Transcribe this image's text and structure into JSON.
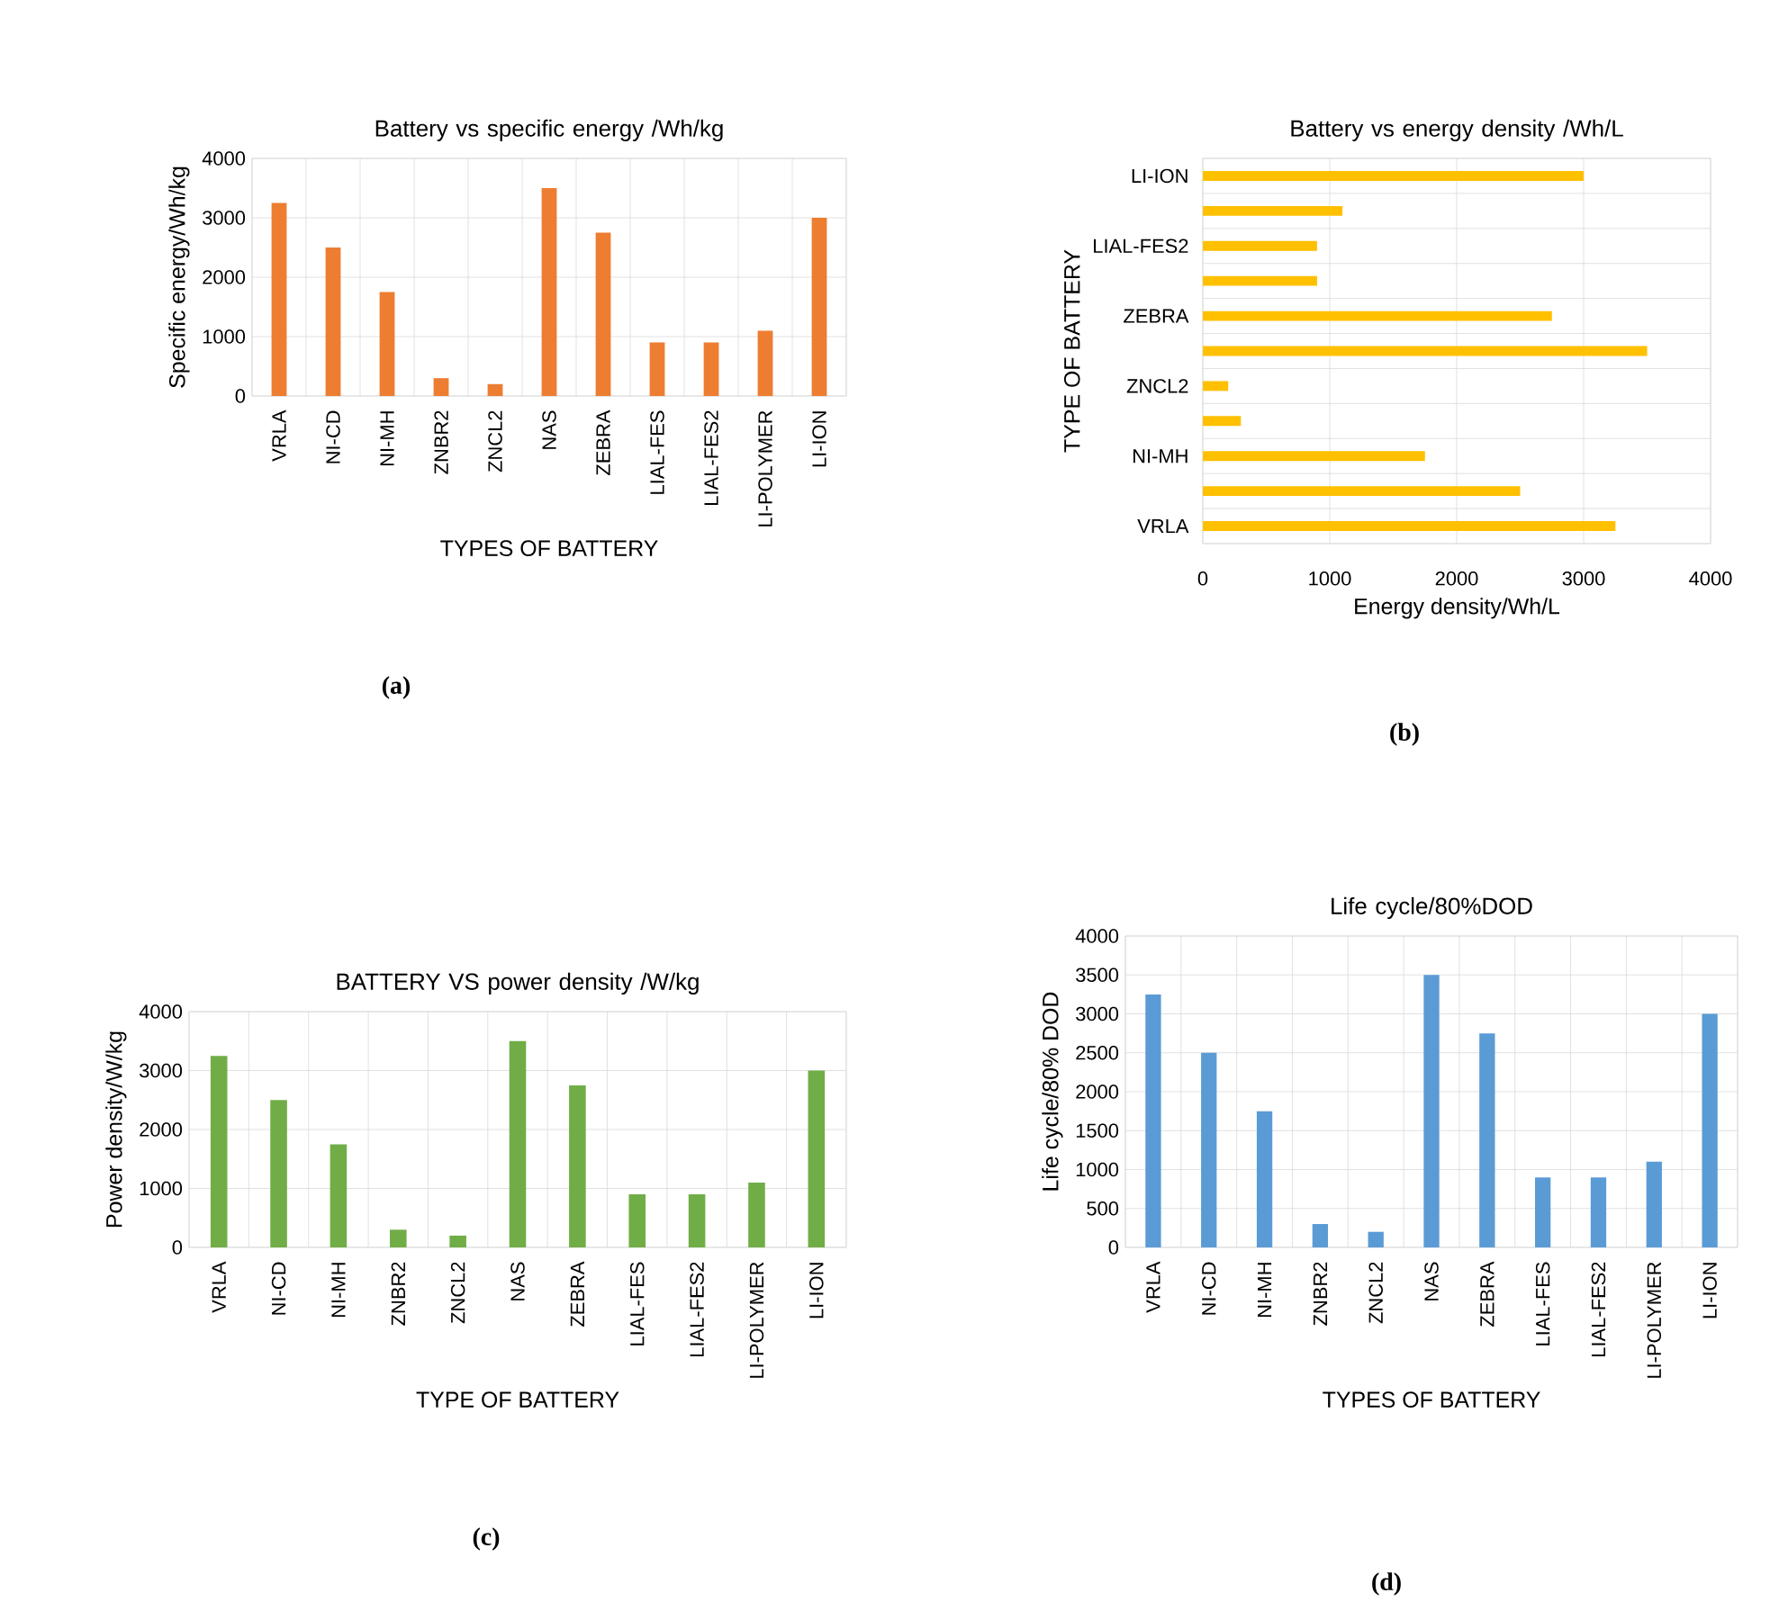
{
  "chart_data": [
    {
      "type": "bar",
      "title": "Battery vs specific energy /Wh/kg",
      "xlabel": "TYPES OF BATTERY",
      "ylabel": "Specific energy/Wh/kg",
      "categories": [
        "VRLA",
        "NI-CD",
        "NI-MH",
        "ZNBR2",
        "ZNCL2",
        "NAS",
        "ZEBRA",
        "LIAL-FES",
        "LIAL-FES2",
        "LI-POLYMER",
        "LI-ION"
      ],
      "values": [
        3250,
        2500,
        1750,
        300,
        200,
        3500,
        2750,
        900,
        900,
        1100,
        3000
      ],
      "color": "#ed7d31",
      "ylim": [
        0,
        4000
      ],
      "yticks": [
        0,
        1000,
        2000,
        3000,
        4000
      ],
      "grid": true,
      "annotations": [
        "(a)"
      ]
    },
    {
      "type": "bar",
      "orientation": "horizontal",
      "title": "Battery vs energy density /Wh/L",
      "xlabel": "Energy density/Wh/L",
      "ylabel": "TYPE OF BATTERY",
      "categories": [
        "LI-ION",
        null,
        "LIAL-FES2",
        null,
        "ZEBRA",
        null,
        "ZNCL2",
        null,
        "NI-MH",
        null,
        "VRLA"
      ],
      "values": [
        3000,
        1100,
        900,
        900,
        2750,
        3500,
        200,
        300,
        1750,
        2500,
        3250
      ],
      "color": "#ffc000",
      "xlim": [
        0,
        4000
      ],
      "xticks": [
        0,
        1000,
        2000,
        3000,
        4000
      ],
      "grid": true,
      "annotations": [
        "(b)"
      ]
    },
    {
      "type": "bar",
      "title": "BATTERY VS power density /W/kg",
      "xlabel": "TYPE OF BATTERY",
      "ylabel": "Power density/W/kg",
      "categories": [
        "VRLA",
        "NI-CD",
        "NI-MH",
        "ZNBR2",
        "ZNCL2",
        "NAS",
        "ZEBRA",
        "LIAL-FES",
        "LIAL-FES2",
        "LI-POLYMER",
        "LI-ION"
      ],
      "values": [
        3250,
        2500,
        1750,
        300,
        200,
        3500,
        2750,
        900,
        900,
        1100,
        3000
      ],
      "color": "#70ad47",
      "ylim": [
        0,
        4000
      ],
      "yticks": [
        0,
        1000,
        2000,
        3000,
        4000
      ],
      "grid": true,
      "annotations": [
        "(c)"
      ]
    },
    {
      "type": "bar",
      "title": "Life cycle/80%DOD",
      "xlabel": "TYPES OF BATTERY",
      "ylabel": "Life cycle/80% DOD",
      "categories": [
        "VRLA",
        "NI-CD",
        "NI-MH",
        "ZNBR2",
        "ZNCL2",
        "NAS",
        "ZEBRA",
        "LIAL-FES",
        "LIAL-FES2",
        "LI-POLYMER",
        "LI-ION"
      ],
      "values": [
        3250,
        2500,
        1750,
        300,
        200,
        3500,
        2750,
        900,
        900,
        1100,
        3000
      ],
      "color": "#5b9bd5",
      "ylim": [
        0,
        4000
      ],
      "yticks": [
        0,
        500,
        1000,
        1500,
        2000,
        2500,
        3000,
        3500,
        4000
      ],
      "grid": true,
      "annotations": [
        "(d)"
      ]
    }
  ]
}
